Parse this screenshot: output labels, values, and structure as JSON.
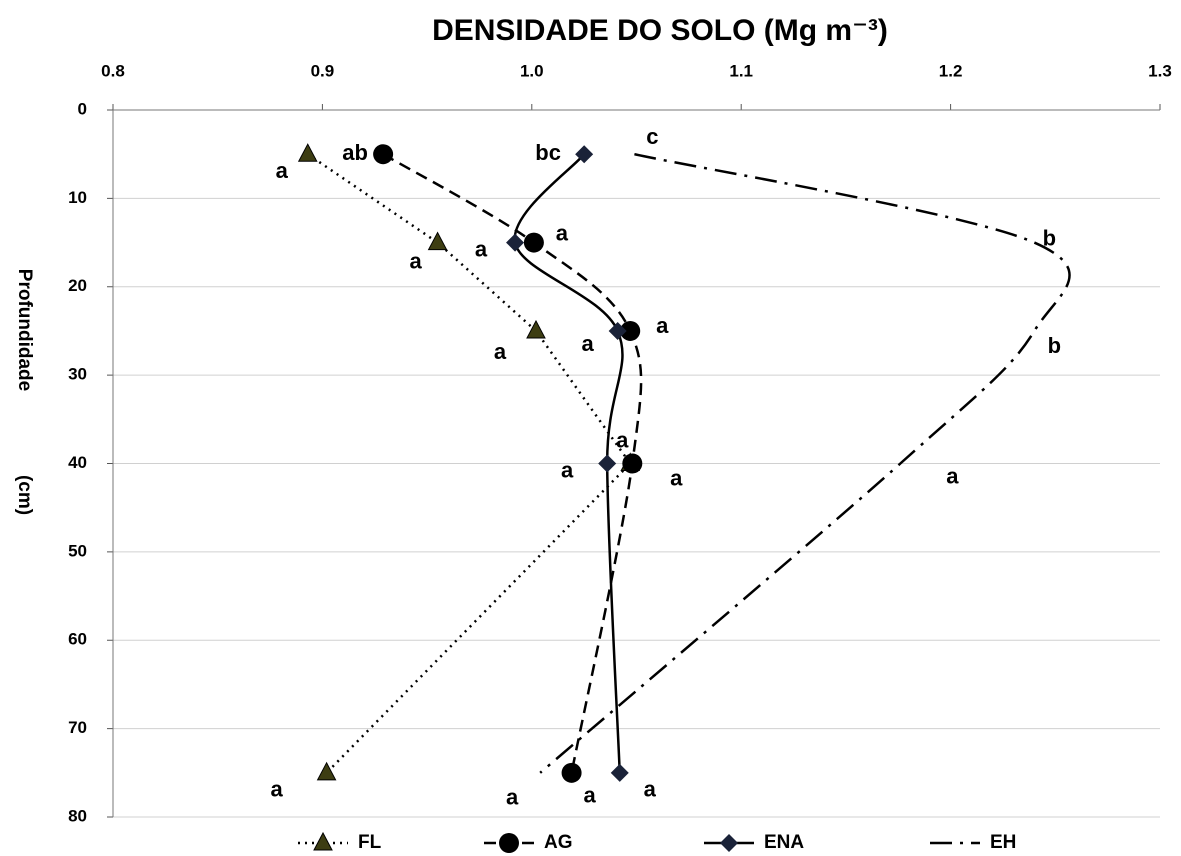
{
  "chart_data": {
    "type": "line",
    "title": "DENSIDADE DO SOLO  (Mg m⁻³)",
    "y_label": [
      "Profundidade",
      "(cm)"
    ],
    "xlim": [
      0.8,
      1.3
    ],
    "xticks": [
      0.8,
      0.9,
      {
        "value": 1,
        "label": "1.0"
      },
      1.1,
      1.2,
      1.3
    ],
    "ylim": [
      0,
      80
    ],
    "yticks": [
      0,
      10,
      20,
      30,
      40,
      50,
      60,
      70,
      80
    ],
    "y_inverted": true,
    "grid": true,
    "series": [
      {
        "name": "FL",
        "color": "#000000",
        "dash": "dotted",
        "marker": "triangle",
        "marker_color": "#3d3d12",
        "smooth": false,
        "x": [
          0.893,
          0.955,
          1.002,
          1.047,
          0.902
        ],
        "values": [
          5,
          15,
          25,
          40,
          75
        ],
        "letters": [
          "a",
          "a",
          "a",
          "a",
          "a"
        ]
      },
      {
        "name": "AG",
        "color": "#000000",
        "dash": "dashed",
        "marker": "circle",
        "marker_color": "#000000",
        "smooth": true,
        "x": [
          0.929,
          1.001,
          1.047,
          1.048,
          1.019
        ],
        "values": [
          5,
          15,
          25,
          40,
          75
        ],
        "letters": [
          "ab",
          "a",
          "a",
          "a",
          "a"
        ]
      },
      {
        "name": "ENA",
        "color": "#000000",
        "dash": "solid",
        "marker": "diamond",
        "marker_color": "#1a2238",
        "smooth": true,
        "x": [
          1.025,
          0.992,
          1.041,
          1.036,
          1.042
        ],
        "values": [
          5,
          15,
          25,
          40,
          75
        ],
        "letters": [
          "bc",
          "a",
          "a",
          "a",
          "a"
        ]
      },
      {
        "name": "EH",
        "color": "#000000",
        "dash": "dashdot",
        "marker": "none",
        "marker_color": "#000000",
        "smooth": true,
        "x": [
          1.049,
          1.24,
          1.24,
          1.176,
          1.004
        ],
        "values": [
          5,
          15,
          25,
          40,
          75
        ],
        "letters": [
          "c",
          "b",
          "b",
          "a",
          "a"
        ]
      }
    ]
  }
}
